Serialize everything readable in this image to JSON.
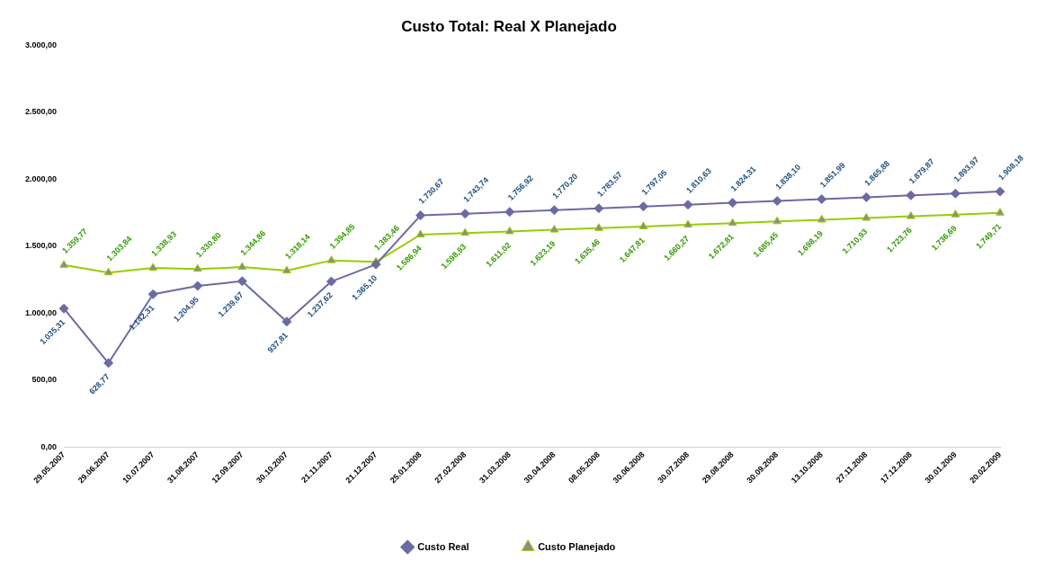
{
  "chart_data": {
    "type": "line",
    "title": "Custo Total: Real X Planejado",
    "categories": [
      "29.05.2007",
      "29.06.2007",
      "10.07.2007",
      "31.08.2007",
      "12.09.2007",
      "30.10.2007",
      "21.11.2007",
      "21.12.2007",
      "25.01.2008",
      "27.02.2008",
      "31.03.2008",
      "30.04.2008",
      "08.05.2008",
      "30.06.2008",
      "30.07.2008",
      "29.08.2008",
      "30.09.2008",
      "13.10.2008",
      "27.11.2008",
      "17.12.2008",
      "30.01.2009",
      "20.02.2009"
    ],
    "series": [
      {
        "name": "Custo Real",
        "color": "#6b6aa3",
        "marker": "diamond",
        "values": [
          1035.31,
          628.77,
          1142.31,
          1204.95,
          1239.67,
          937.81,
          1237.62,
          1365.1,
          1730.67,
          1743.74,
          1756.92,
          1770.2,
          1783.57,
          1797.05,
          1810.63,
          1824.31,
          1838.1,
          1851.99,
          1865.88,
          1879.87,
          1893.97,
          1908.18
        ],
        "value_labels": [
          "1.035,31",
          "628,77",
          "1.142,31",
          "1.204,95",
          "1.239,67",
          "937,81",
          "1.237,62",
          "1.365,10",
          "1.730,67",
          "1.743,74",
          "1.756,92",
          "1.770,20",
          "1.783,57",
          "1.797,05",
          "1.810,63",
          "1.824,31",
          "1.838,10",
          "1.851,99",
          "1.865,88",
          "1.879,87",
          "1.893,97",
          "1.908,18"
        ]
      },
      {
        "name": "Custo Planejado",
        "color": "#99cc00",
        "marker": "triangle",
        "values": [
          1359.77,
          1303.84,
          1338.93,
          1330.8,
          1344.86,
          1318.14,
          1394.85,
          1383.46,
          1586.94,
          1598.93,
          1611.02,
          1623.19,
          1635.46,
          1647.81,
          1660.27,
          1672.81,
          1685.45,
          1698.19,
          1710.93,
          1723.76,
          1736.69,
          1749.71
        ],
        "value_labels": [
          "1.359,77",
          "1.303,84",
          "1.338,93",
          "1.330,80",
          "1.344,86",
          "1.318,14",
          "1.394,85",
          "1.383,46",
          "1.586,94",
          "1.598,93",
          "1.611,02",
          "1.623,19",
          "1.635,46",
          "1.647,81",
          "1.660,27",
          "1.672,81",
          "1.685,45",
          "1.698,19",
          "1.710,93",
          "1.723,76",
          "1.736,69",
          "1.749,71"
        ]
      }
    ],
    "ylim": [
      0,
      3000
    ],
    "yticks": [
      {
        "value": 0,
        "label": "0,00"
      },
      {
        "value": 500,
        "label": "500,00"
      },
      {
        "value": 1000,
        "label": "1.000,00"
      },
      {
        "value": 1500,
        "label": "1.500,00"
      },
      {
        "value": 2000,
        "label": "2.000,00"
      },
      {
        "value": 2500,
        "label": "2.500,00"
      },
      {
        "value": 3000,
        "label": "3.000,00"
      }
    ],
    "grid": false,
    "legend": "bottom",
    "line_style": "solid"
  }
}
